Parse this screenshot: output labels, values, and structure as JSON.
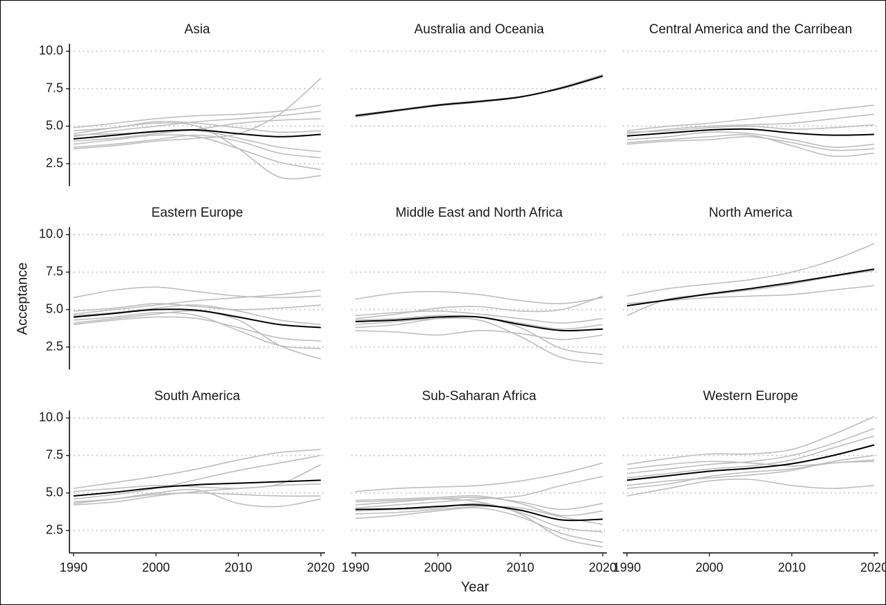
{
  "chart_data": {
    "type": "line",
    "xlabel": "Year",
    "ylabel": "Acceptance",
    "x": [
      1990,
      1995,
      2000,
      2005,
      2010,
      2015,
      2020
    ],
    "xlim": [
      1989.5,
      2020.5
    ],
    "xticks": [
      1990,
      2000,
      2010,
      2020
    ],
    "ylim": [
      1.0,
      10.5
    ],
    "yticks": [
      {
        "value": 2.5,
        "label": "2.5"
      },
      {
        "value": 5,
        "label": "5.0"
      },
      {
        "value": 7.5,
        "label": "7.5"
      },
      {
        "value": 10,
        "label": "10.0"
      }
    ],
    "grid": true,
    "facets": [
      {
        "title": "Asia",
        "series": [
          {
            "color": "#bebebe",
            "values": [
              3.5,
              3.7,
              4.0,
              4.2,
              4.5,
              5.8,
              8.2
            ]
          },
          {
            "color": "#bebebe",
            "values": [
              4.9,
              5.2,
              5.5,
              5.7,
              5.8,
              6.0,
              6.4
            ]
          },
          {
            "color": "#bebebe",
            "values": [
              4.5,
              4.9,
              5.2,
              5.0,
              3.5,
              1.6,
              1.7
            ]
          },
          {
            "color": "#bebebe",
            "values": [
              3.8,
              4.1,
              4.4,
              4.3,
              3.5,
              2.6,
              2.1
            ]
          },
          {
            "color": "#bebebe",
            "values": [
              4.3,
              4.7,
              5.0,
              5.3,
              5.5,
              5.7,
              6.0
            ]
          },
          {
            "color": "#bebebe",
            "values": [
              4.0,
              4.2,
              4.5,
              4.7,
              4.2,
              3.6,
              3.3
            ]
          },
          {
            "color": "#bebebe",
            "values": [
              4.7,
              4.9,
              5.3,
              5.2,
              4.9,
              4.6,
              4.7
            ]
          },
          {
            "color": "#bebebe",
            "values": [
              3.6,
              3.8,
              4.1,
              4.4,
              4.0,
              3.2,
              2.9
            ]
          },
          {
            "color": "#bebebe",
            "values": [
              4.4,
              4.5,
              4.6,
              4.8,
              5.2,
              5.4,
              5.5
            ]
          },
          {
            "color": "#000000",
            "values": [
              4.15,
              4.4,
              4.65,
              4.75,
              4.5,
              4.3,
              4.45
            ]
          }
        ]
      },
      {
        "title": "Australia and Oceania",
        "series": [
          {
            "color": "#bebebe",
            "values": [
              5.6,
              6.0,
              6.35,
              6.6,
              6.95,
              7.6,
              8.45
            ]
          },
          {
            "color": "#bebebe",
            "values": [
              5.75,
              6.1,
              6.45,
              6.7,
              6.98,
              7.5,
              8.3
            ]
          },
          {
            "color": "#000000",
            "values": [
              5.7,
              6.05,
              6.4,
              6.65,
              6.95,
              7.55,
              8.35
            ]
          }
        ]
      },
      {
        "title": "Central America and the Carribean",
        "series": [
          {
            "color": "#bebebe",
            "values": [
              4.7,
              5.0,
              5.2,
              5.5,
              5.8,
              6.1,
              6.4
            ]
          },
          {
            "color": "#bebebe",
            "values": [
              3.9,
              4.1,
              4.3,
              4.4,
              3.7,
              3.0,
              3.2
            ]
          },
          {
            "color": "#bebebe",
            "values": [
              4.5,
              4.8,
              5.0,
              5.1,
              5.2,
              5.5,
              5.8
            ]
          },
          {
            "color": "#bebebe",
            "values": [
              4.1,
              4.3,
              4.6,
              4.5,
              4.1,
              3.6,
              3.8
            ]
          },
          {
            "color": "#bebebe",
            "values": [
              4.6,
              4.7,
              4.9,
              5.0,
              4.8,
              4.9,
              5.1
            ]
          },
          {
            "color": "#bebebe",
            "values": [
              3.8,
              4.0,
              4.1,
              4.3,
              3.9,
              3.4,
              3.5
            ]
          },
          {
            "color": "#000000",
            "values": [
              4.35,
              4.55,
              4.75,
              4.8,
              4.55,
              4.4,
              4.45
            ]
          }
        ]
      },
      {
        "title": "Eastern Europe",
        "series": [
          {
            "color": "#bebebe",
            "values": [
              5.8,
              6.3,
              6.5,
              6.2,
              5.9,
              5.8,
              5.9
            ]
          },
          {
            "color": "#bebebe",
            "values": [
              4.1,
              4.4,
              4.7,
              4.9,
              4.3,
              2.6,
              1.7
            ]
          },
          {
            "color": "#bebebe",
            "values": [
              4.7,
              5.0,
              5.3,
              5.6,
              5.8,
              6.0,
              6.3
            ]
          },
          {
            "color": "#bebebe",
            "values": [
              4.3,
              4.5,
              4.8,
              4.6,
              3.6,
              2.6,
              2.4
            ]
          },
          {
            "color": "#bebebe",
            "values": [
              4.9,
              5.1,
              5.4,
              5.2,
              5.0,
              5.1,
              5.3
            ]
          },
          {
            "color": "#bebebe",
            "values": [
              4.0,
              4.3,
              4.5,
              4.4,
              3.8,
              3.1,
              2.9
            ]
          },
          {
            "color": "#bebebe",
            "values": [
              4.6,
              4.8,
              5.1,
              5.3,
              4.9,
              4.3,
              4.0
            ]
          },
          {
            "color": "#000000",
            "values": [
              4.5,
              4.75,
              5.0,
              4.95,
              4.5,
              4.0,
              3.8
            ]
          }
        ]
      },
      {
        "title": "Middle East and North Africa",
        "series": [
          {
            "color": "#bebebe",
            "values": [
              5.7,
              6.1,
              6.2,
              6.0,
              5.6,
              5.4,
              5.8
            ]
          },
          {
            "color": "#bebebe",
            "values": [
              4.0,
              4.2,
              4.4,
              4.3,
              3.2,
              1.8,
              1.4
            ]
          },
          {
            "color": "#bebebe",
            "values": [
              4.4,
              4.7,
              5.1,
              5.2,
              4.9,
              5.0,
              5.9
            ]
          },
          {
            "color": "#bebebe",
            "values": [
              3.6,
              3.5,
              3.3,
              3.6,
              3.4,
              3.0,
              3.3
            ]
          },
          {
            "color": "#bebebe",
            "values": [
              3.8,
              4.0,
              4.4,
              4.5,
              3.8,
              2.4,
              2.0
            ]
          },
          {
            "color": "#bebebe",
            "values": [
              4.6,
              4.8,
              4.9,
              4.7,
              4.4,
              4.1,
              4.4
            ]
          },
          {
            "color": "#bebebe",
            "values": [
              4.3,
              4.4,
              4.6,
              4.5,
              4.1,
              3.7,
              4.0
            ]
          },
          {
            "color": "#000000",
            "values": [
              4.2,
              4.3,
              4.5,
              4.5,
              4.0,
              3.6,
              3.7
            ]
          }
        ]
      },
      {
        "title": "North America",
        "series": [
          {
            "color": "#bebebe",
            "values": [
              5.9,
              6.4,
              6.7,
              7.0,
              7.5,
              8.3,
              9.4
            ]
          },
          {
            "color": "#bebebe",
            "values": [
              4.6,
              5.7,
              6.0,
              6.3,
              6.7,
              7.2,
              7.6
            ]
          },
          {
            "color": "#bebebe",
            "values": [
              5.4,
              5.6,
              5.8,
              5.9,
              6.0,
              6.3,
              6.6
            ]
          },
          {
            "color": "#000000",
            "values": [
              5.25,
              5.65,
              6.05,
              6.4,
              6.8,
              7.25,
              7.7
            ]
          }
        ]
      },
      {
        "title": "South America",
        "series": [
          {
            "color": "#bebebe",
            "values": [
              5.3,
              5.7,
              6.1,
              6.6,
              7.2,
              7.7,
              7.9
            ]
          },
          {
            "color": "#bebebe",
            "values": [
              4.3,
              4.6,
              5.0,
              5.2,
              4.3,
              4.1,
              4.6
            ]
          },
          {
            "color": "#bebebe",
            "values": [
              4.6,
              4.9,
              5.3,
              5.9,
              6.5,
              7.0,
              7.5
            ]
          },
          {
            "color": "#bebebe",
            "values": [
              4.4,
              4.6,
              4.9,
              5.0,
              4.9,
              4.8,
              4.8
            ]
          },
          {
            "color": "#bebebe",
            "values": [
              5.1,
              5.3,
              5.5,
              5.4,
              5.3,
              5.5,
              5.6
            ]
          },
          {
            "color": "#bebebe",
            "values": [
              4.2,
              4.4,
              4.8,
              5.1,
              5.3,
              5.6,
              6.9
            ]
          },
          {
            "color": "#000000",
            "values": [
              4.8,
              5.05,
              5.35,
              5.55,
              5.65,
              5.75,
              5.85
            ]
          }
        ]
      },
      {
        "title": "Sub-Saharan Africa",
        "series": [
          {
            "color": "#bebebe",
            "values": [
              5.1,
              5.3,
              5.4,
              5.5,
              5.8,
              6.3,
              7.0
            ]
          },
          {
            "color": "#bebebe",
            "values": [
              4.4,
              4.5,
              4.6,
              4.4,
              3.6,
              2.0,
              1.4
            ]
          },
          {
            "color": "#bebebe",
            "values": [
              3.3,
              3.5,
              3.8,
              4.0,
              3.4,
              2.3,
              1.7
            ]
          },
          {
            "color": "#bebebe",
            "values": [
              4.2,
              4.4,
              4.6,
              4.7,
              4.4,
              3.9,
              4.3
            ]
          },
          {
            "color": "#bebebe",
            "values": [
              3.6,
              3.7,
              3.9,
              4.1,
              4.0,
              3.4,
              2.9
            ]
          },
          {
            "color": "#bebebe",
            "values": [
              4.0,
              4.2,
              4.4,
              4.6,
              4.8,
              5.5,
              6.1
            ]
          },
          {
            "color": "#bebebe",
            "values": [
              3.8,
              3.9,
              4.0,
              4.3,
              3.7,
              2.7,
              2.4
            ]
          },
          {
            "color": "#bebebe",
            "values": [
              4.5,
              4.6,
              4.7,
              4.8,
              4.3,
              3.5,
              3.8
            ]
          },
          {
            "color": "#000000",
            "values": [
              3.9,
              3.95,
              4.1,
              4.2,
              3.85,
              3.2,
              3.25
            ]
          }
        ]
      },
      {
        "title": "Western Europe",
        "series": [
          {
            "color": "#bebebe",
            "values": [
              6.9,
              7.3,
              7.6,
              7.6,
              7.9,
              8.9,
              10.1
            ]
          },
          {
            "color": "#bebebe",
            "values": [
              4.8,
              5.3,
              5.8,
              5.9,
              5.5,
              5.3,
              5.5
            ]
          },
          {
            "color": "#bebebe",
            "values": [
              6.3,
              6.6,
              6.9,
              7.1,
              7.5,
              8.3,
              9.3
            ]
          },
          {
            "color": "#bebebe",
            "values": [
              5.3,
              5.6,
              6.1,
              6.4,
              6.6,
              7.0,
              7.1
            ]
          },
          {
            "color": "#bebebe",
            "values": [
              6.0,
              6.3,
              6.6,
              6.8,
              7.2,
              8.0,
              8.8
            ]
          },
          {
            "color": "#bebebe",
            "values": [
              5.5,
              5.8,
              6.0,
              6.2,
              6.5,
              7.1,
              7.5
            ]
          },
          {
            "color": "#bebebe",
            "values": [
              6.6,
              6.9,
              7.1,
              7.0,
              6.8,
              7.0,
              7.2
            ]
          },
          {
            "color": "#000000",
            "values": [
              5.85,
              6.15,
              6.45,
              6.65,
              6.95,
              7.5,
              8.2
            ]
          }
        ]
      }
    ]
  }
}
